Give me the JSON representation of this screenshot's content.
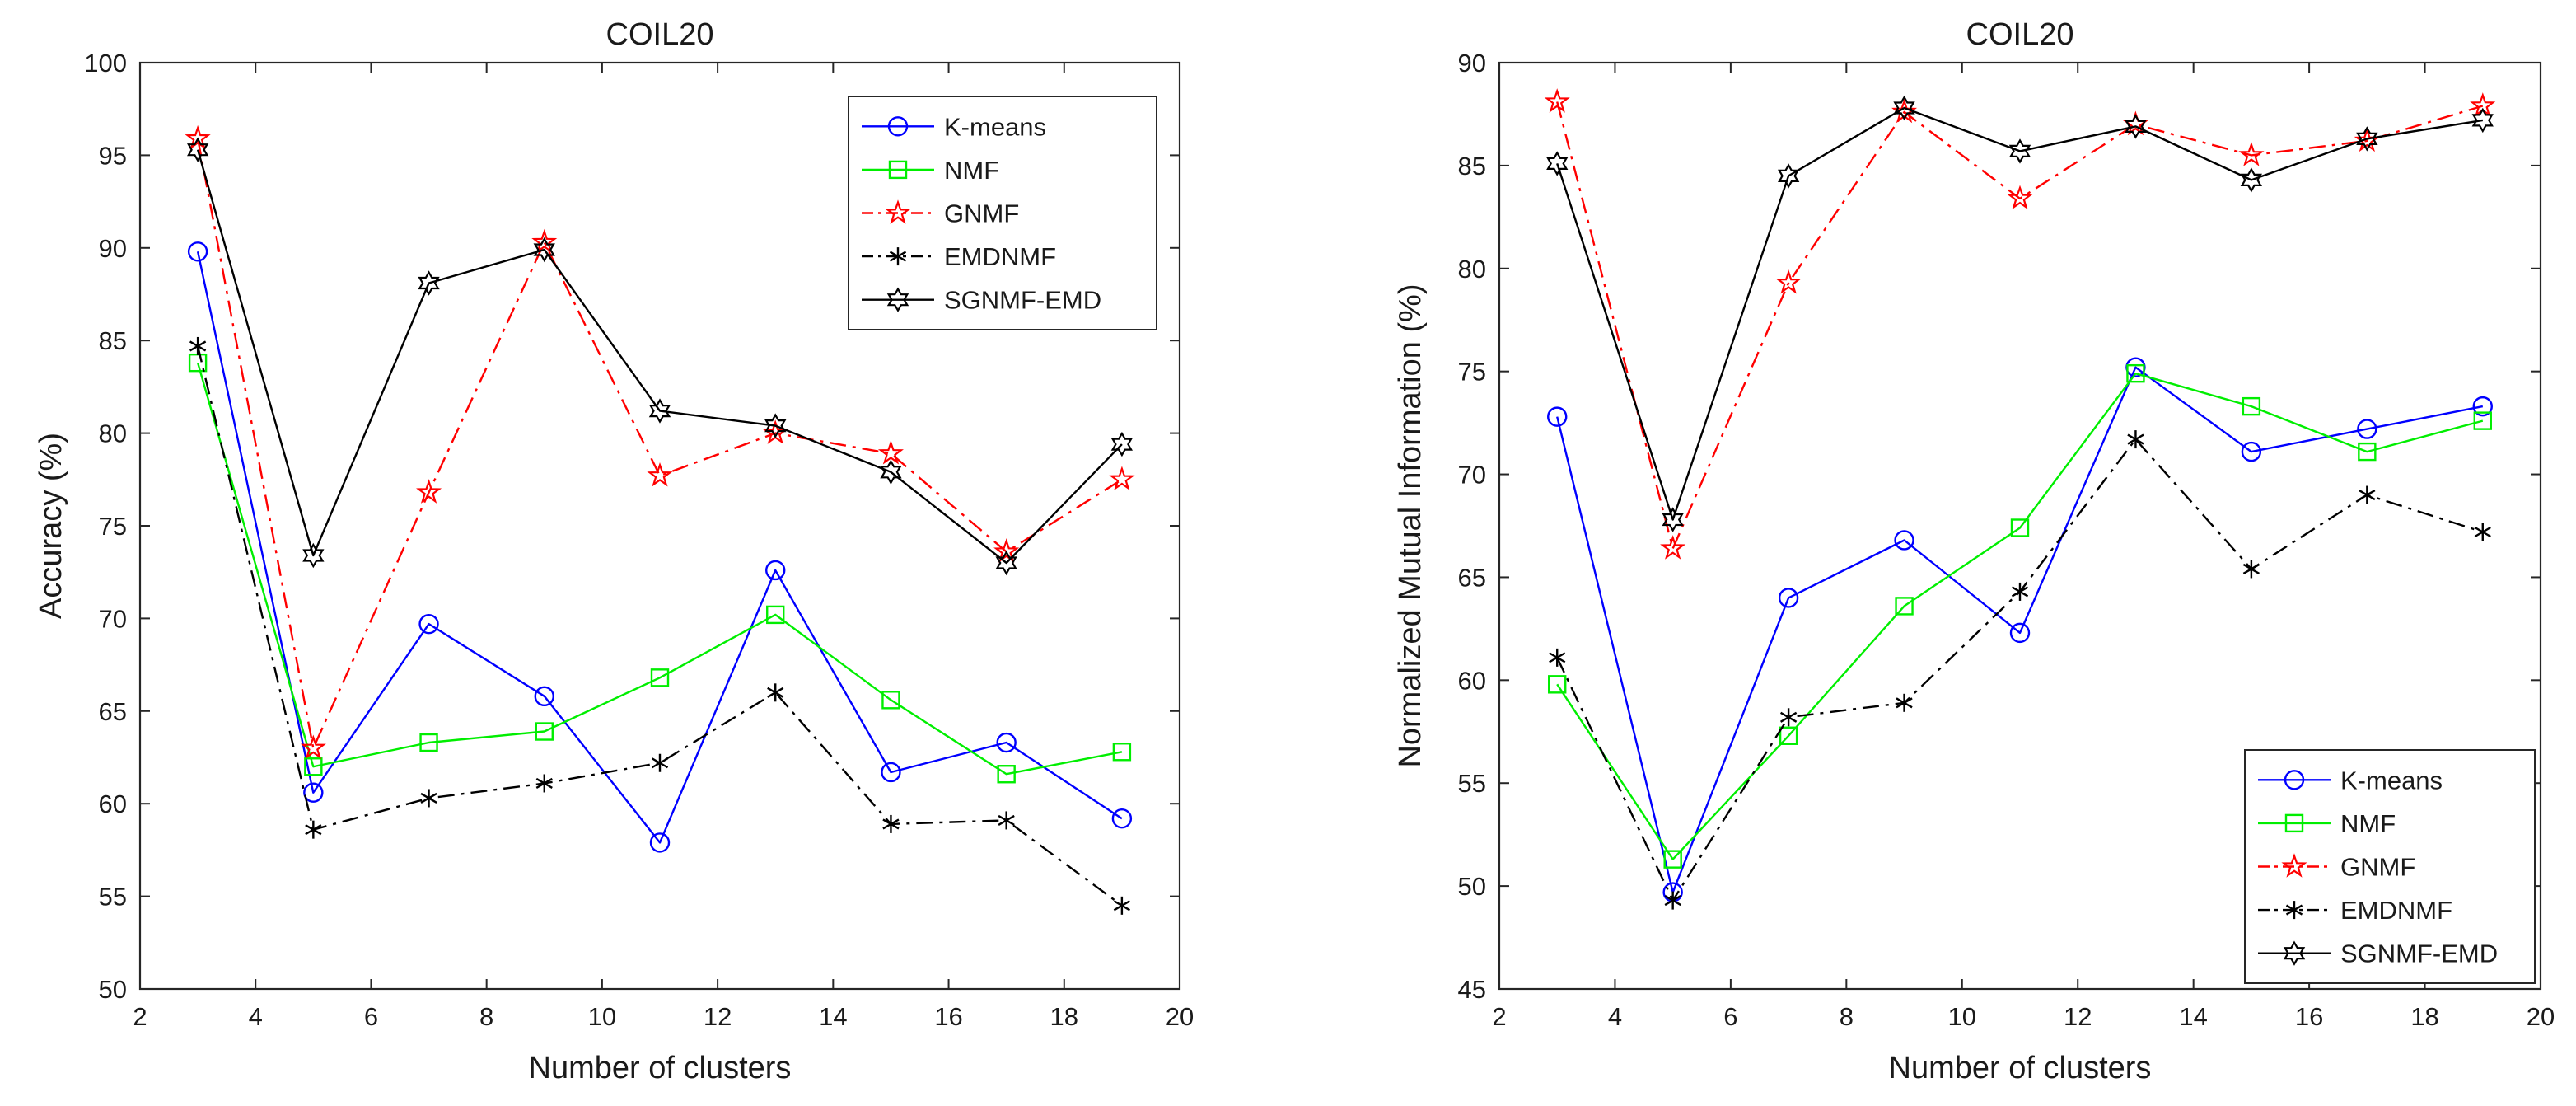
{
  "chart_data": [
    {
      "type": "line",
      "title": "COIL20",
      "xlabel": "Number of clusters",
      "ylabel": "Accuracy (%)",
      "xlim": [
        2,
        20
      ],
      "ylim": [
        50,
        100
      ],
      "xticks": [
        2,
        4,
        6,
        8,
        10,
        12,
        14,
        16,
        18,
        20
      ],
      "yticks": [
        50,
        55,
        60,
        65,
        70,
        75,
        80,
        85,
        90,
        95,
        100
      ],
      "x": [
        3,
        5,
        7,
        9,
        11,
        13,
        15,
        17,
        19
      ],
      "legend_position": "top-right",
      "grid": false,
      "series": [
        {
          "name": "K-means",
          "color": "#0000ff",
          "marker": "circle",
          "dash": "solid",
          "values": [
            89.8,
            60.6,
            69.7,
            65.8,
            57.9,
            72.6,
            61.7,
            63.3,
            59.2
          ]
        },
        {
          "name": "NMF",
          "color": "#00ee00",
          "marker": "square",
          "dash": "solid",
          "values": [
            83.8,
            62.0,
            63.3,
            63.9,
            66.8,
            70.2,
            65.6,
            61.6,
            62.8
          ]
        },
        {
          "name": "GNMF",
          "color": "#ff0000",
          "marker": "star",
          "dash": "dashdot",
          "values": [
            95.9,
            63.0,
            76.8,
            90.3,
            77.7,
            80.0,
            78.9,
            73.6,
            77.5
          ]
        },
        {
          "name": "EMDNMF",
          "color": "#000000",
          "marker": "asterisk",
          "dash": "dashdot",
          "values": [
            84.7,
            58.6,
            60.3,
            61.1,
            62.2,
            66.0,
            58.9,
            59.1,
            54.5
          ]
        },
        {
          "name": "SGNMF-EMD",
          "color": "#000000",
          "marker": "hexagram",
          "dash": "solid",
          "values": [
            95.3,
            73.4,
            88.1,
            89.9,
            81.2,
            80.4,
            77.9,
            73.0,
            79.4
          ]
        }
      ]
    },
    {
      "type": "line",
      "title": "COIL20",
      "xlabel": "Number of clusters",
      "ylabel": "Normalized Mutual Information (%)",
      "xlim": [
        2,
        20
      ],
      "ylim": [
        45,
        90
      ],
      "xticks": [
        2,
        4,
        6,
        8,
        10,
        12,
        14,
        16,
        18,
        20
      ],
      "yticks": [
        45,
        50,
        55,
        60,
        65,
        70,
        75,
        80,
        85,
        90
      ],
      "x": [
        3,
        5,
        7,
        9,
        11,
        13,
        15,
        17,
        19
      ],
      "legend_position": "bottom-right",
      "grid": false,
      "series": [
        {
          "name": "K-means",
          "color": "#0000ff",
          "marker": "circle",
          "dash": "solid",
          "values": [
            72.8,
            49.7,
            64.0,
            66.8,
            62.3,
            75.2,
            71.1,
            72.2,
            73.3
          ]
        },
        {
          "name": "NMF",
          "color": "#00ee00",
          "marker": "square",
          "dash": "solid",
          "values": [
            59.8,
            51.3,
            57.3,
            63.6,
            67.4,
            74.9,
            73.3,
            71.1,
            72.6
          ]
        },
        {
          "name": "GNMF",
          "color": "#ff0000",
          "marker": "star",
          "dash": "dashdot",
          "values": [
            88.1,
            66.4,
            79.3,
            87.6,
            83.4,
            87.0,
            85.5,
            86.2,
            87.9
          ]
        },
        {
          "name": "EMDNMF",
          "color": "#000000",
          "marker": "asterisk",
          "dash": "dashdot",
          "values": [
            61.1,
            49.3,
            58.2,
            58.9,
            64.3,
            71.7,
            65.4,
            69.0,
            67.2
          ]
        },
        {
          "name": "SGNMF-EMD",
          "color": "#000000",
          "marker": "hexagram",
          "dash": "solid",
          "values": [
            85.1,
            67.8,
            84.5,
            87.8,
            85.7,
            86.9,
            84.3,
            86.3,
            87.2
          ]
        }
      ]
    }
  ]
}
